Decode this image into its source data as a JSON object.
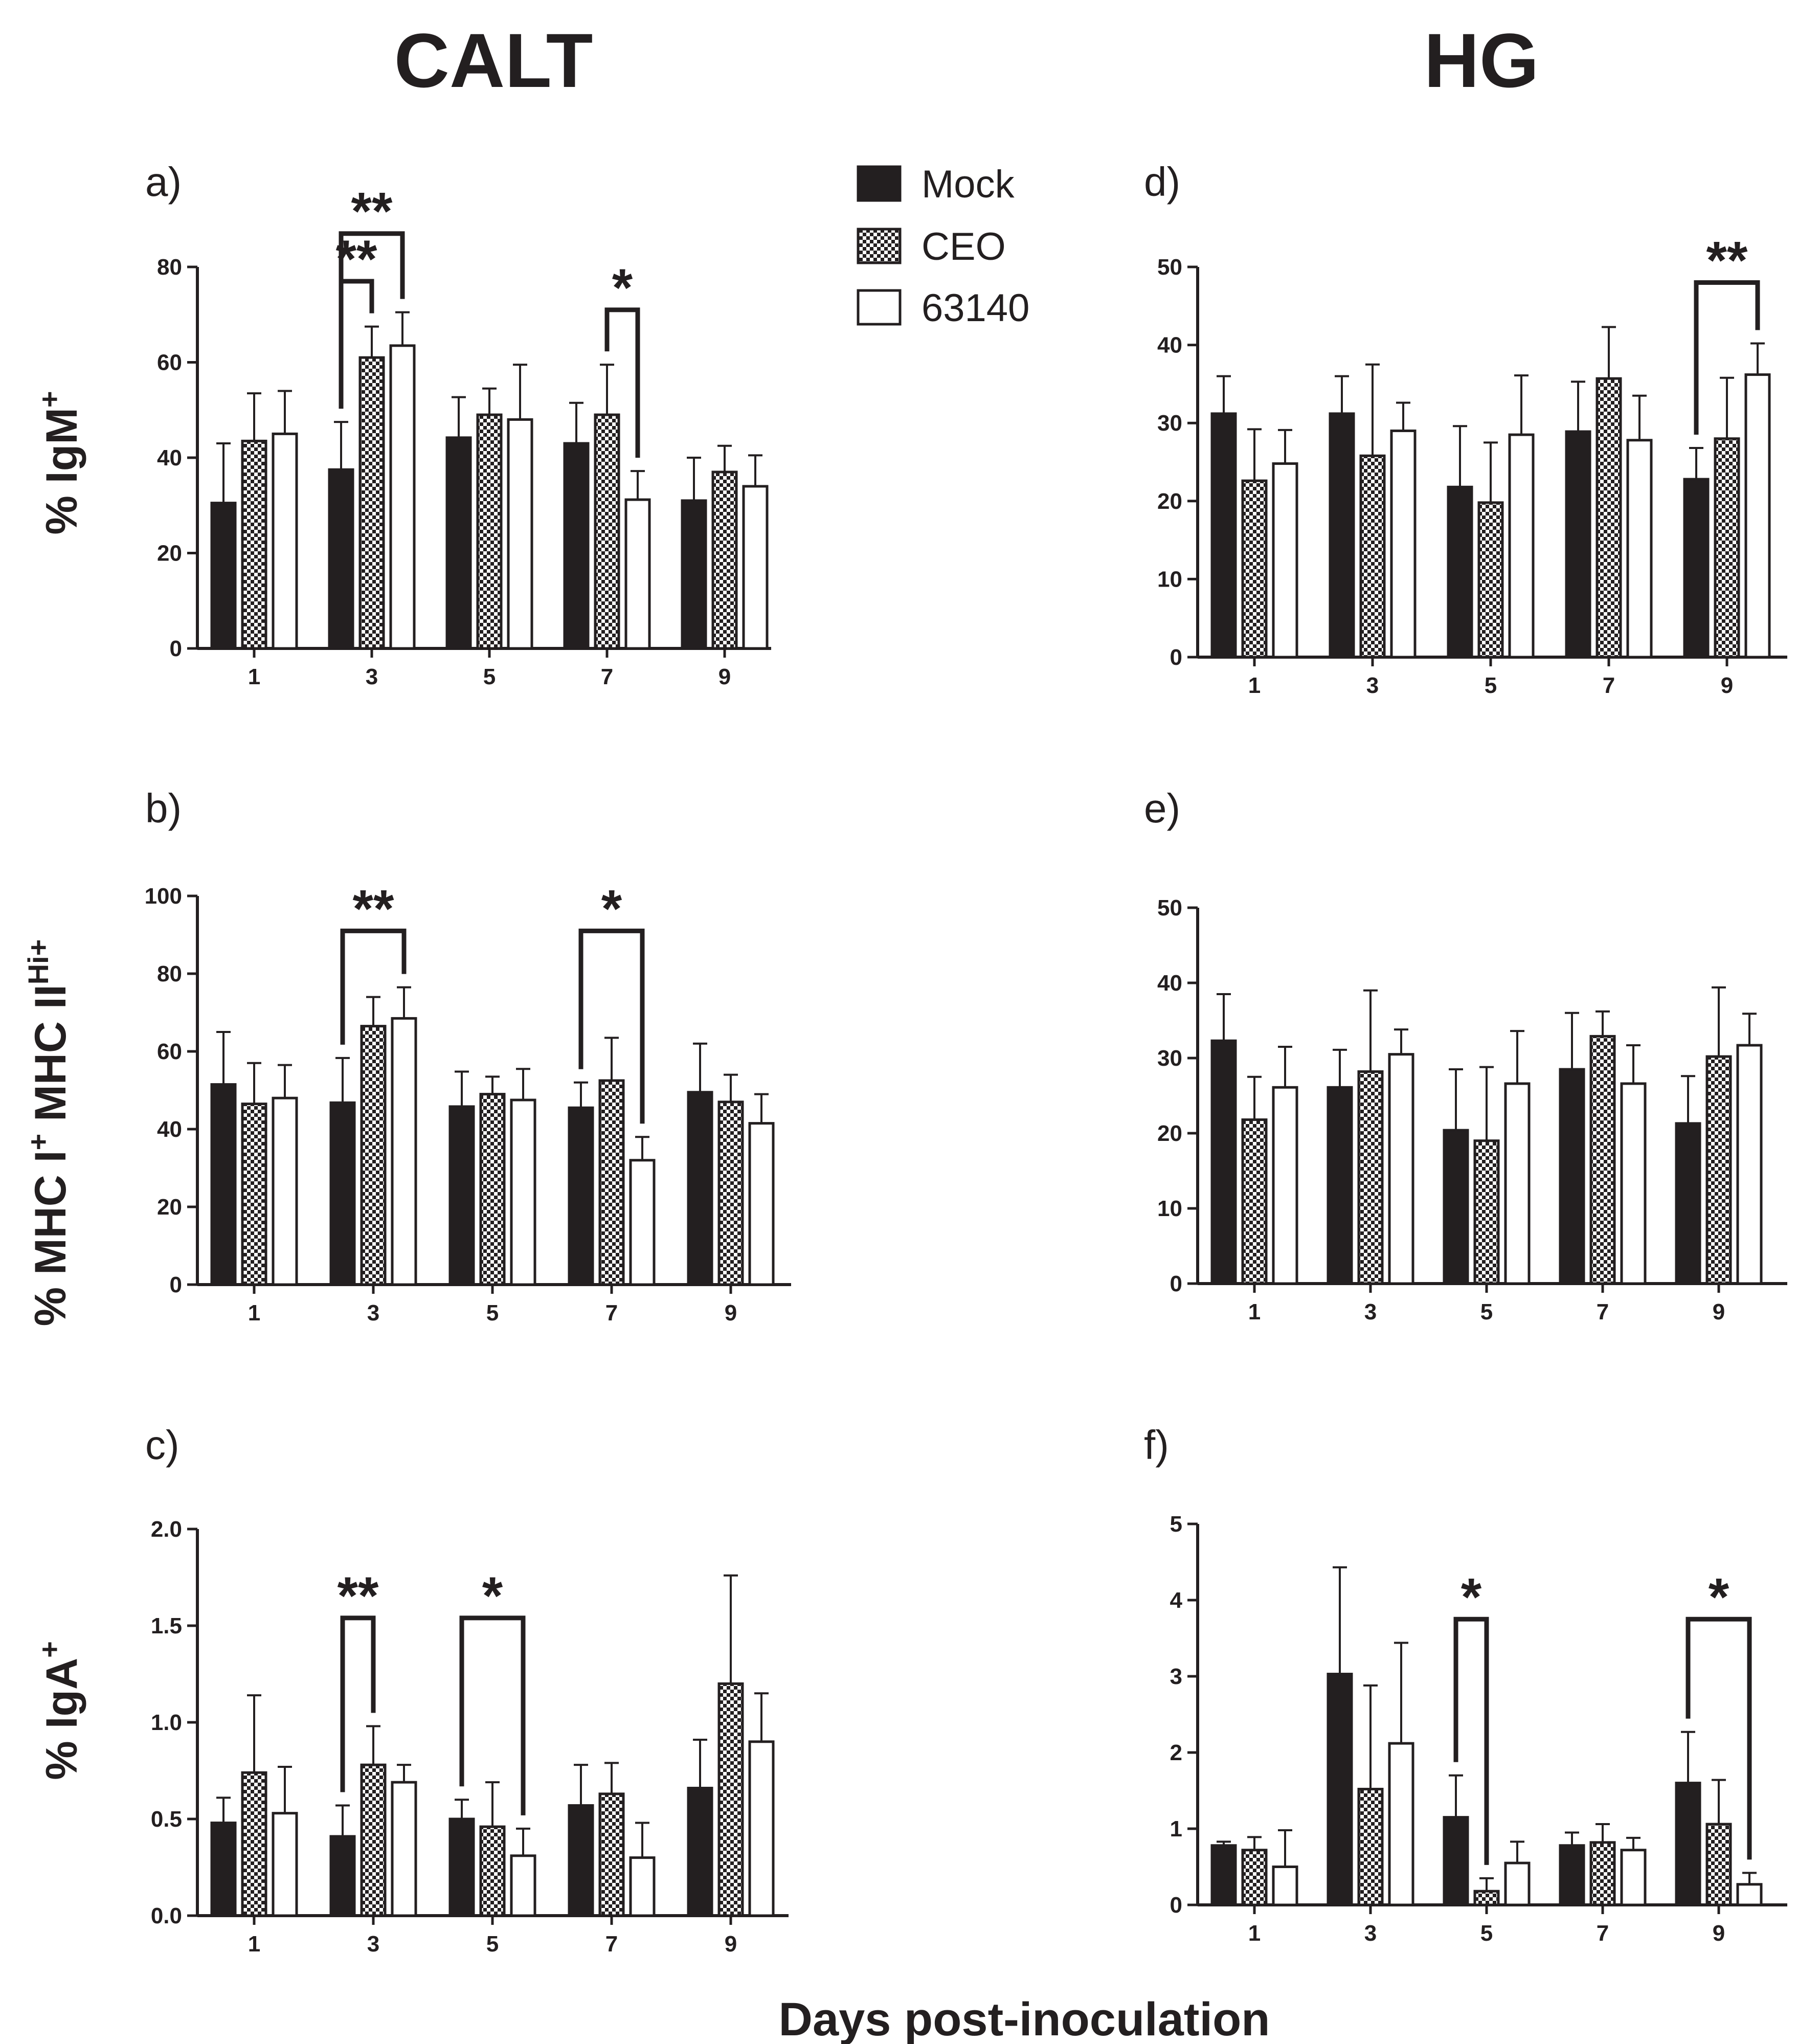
{
  "figure": {
    "column_titles": {
      "left": "CALT",
      "right": "HG"
    },
    "x_label": "Days post-inoculation",
    "y_labels": {
      "igm": {
        "main": "%  IgM",
        "sup": "+"
      },
      "mhc": {
        "a": "% MHC I",
        "b": "+",
        "c": " MHC II",
        "d": "Hi+"
      },
      "iga": {
        "main": "% IgA",
        "sup": "+"
      }
    },
    "legend": [
      {
        "name": "Mock",
        "fill": "solid"
      },
      {
        "name": "CEO",
        "fill": "checker"
      },
      {
        "name": "63140",
        "fill": "open"
      }
    ]
  },
  "colors": {
    "ink": "#231f20",
    "background": "#ffffff"
  },
  "chart_data": [
    {
      "id": "a",
      "label": "a)",
      "type": "bar",
      "tissue": "CALT",
      "categories": [
        "1",
        "3",
        "5",
        "7",
        "9"
      ],
      "yticks": [
        "0",
        "20",
        "40",
        "60",
        "80"
      ],
      "ylim": [
        0,
        80
      ],
      "series": [
        {
          "name": "Mock",
          "values": [
            30.5,
            37.5,
            44.2,
            43.0,
            31.0
          ],
          "errors": [
            12.5,
            10.0,
            8.5,
            8.5,
            9.0
          ]
        },
        {
          "name": "CEO",
          "values": [
            43.5,
            61.0,
            49.0,
            49.0,
            37.0
          ],
          "errors": [
            10.0,
            6.5,
            5.5,
            10.5,
            5.5
          ]
        },
        {
          "name": "63140",
          "values": [
            45.0,
            63.5,
            48.0,
            31.2,
            34.0
          ],
          "errors": [
            9.0,
            7.0,
            11.5,
            6.0,
            6.5
          ]
        }
      ],
      "annotations": [
        {
          "label": "**",
          "category": "3",
          "from": "Mock",
          "to": "CEO",
          "level": 77
        },
        {
          "label": "**",
          "category": "3",
          "from": "Mock",
          "to": "63140",
          "level": 87
        },
        {
          "label": "*",
          "category": "7",
          "from": "CEO",
          "to": "63140",
          "level": 71
        }
      ]
    },
    {
      "id": "b",
      "label": "b)",
      "type": "bar",
      "tissue": "CALT",
      "categories": [
        "1",
        "3",
        "5",
        "7",
        "9"
      ],
      "yticks": [
        "0",
        "20",
        "40",
        "60",
        "80",
        "100"
      ],
      "ylim": [
        0,
        100
      ],
      "series": [
        {
          "name": "Mock",
          "values": [
            51.5,
            46.8,
            45.8,
            45.5,
            49.5
          ],
          "errors": [
            13.5,
            11.5,
            9.0,
            6.5,
            12.5
          ]
        },
        {
          "name": "CEO",
          "values": [
            46.5,
            66.5,
            49.0,
            52.5,
            47.0
          ],
          "errors": [
            10.5,
            7.5,
            4.5,
            11.0,
            7.0
          ]
        },
        {
          "name": "63140",
          "values": [
            48.0,
            68.5,
            47.5,
            32.0,
            41.5
          ],
          "errors": [
            8.5,
            8.0,
            8.0,
            6.0,
            7.5
          ]
        }
      ],
      "annotations": [
        {
          "label": "**",
          "category": "3",
          "from": "Mock",
          "to": "63140",
          "level": 91
        },
        {
          "label": "*",
          "category": "7",
          "from": "Mock",
          "to": "63140",
          "level": 91
        }
      ]
    },
    {
      "id": "c",
      "label": "c)",
      "type": "bar",
      "tissue": "CALT",
      "categories": [
        "1",
        "3",
        "5",
        "7",
        "9"
      ],
      "yticks": [
        "0.0",
        "0.5",
        "1.0",
        "1.5",
        "2.0"
      ],
      "ylim": [
        0,
        2.0
      ],
      "series": [
        {
          "name": "Mock",
          "values": [
            0.48,
            0.41,
            0.5,
            0.57,
            0.66
          ],
          "errors": [
            0.13,
            0.16,
            0.1,
            0.21,
            0.25
          ]
        },
        {
          "name": "CEO",
          "values": [
            0.74,
            0.78,
            0.46,
            0.63,
            1.2
          ],
          "errors": [
            0.4,
            0.2,
            0.23,
            0.16,
            0.56
          ]
        },
        {
          "name": "63140",
          "values": [
            0.53,
            0.69,
            0.31,
            0.3,
            0.9
          ],
          "errors": [
            0.24,
            0.09,
            0.14,
            0.18,
            0.25
          ]
        }
      ],
      "annotations": [
        {
          "label": "**",
          "category": "3",
          "from": "Mock",
          "to": "CEO",
          "level": 1.54
        },
        {
          "label": "*",
          "category": "5",
          "from": "Mock",
          "to": "63140",
          "level": 1.54
        }
      ]
    },
    {
      "id": "d",
      "label": "d)",
      "type": "bar",
      "tissue": "HG",
      "categories": [
        "1",
        "3",
        "5",
        "7",
        "9"
      ],
      "yticks": [
        "0",
        "10",
        "20",
        "30",
        "40",
        "50"
      ],
      "ylim": [
        0,
        50
      ],
      "series": [
        {
          "name": "Mock",
          "values": [
            31.2,
            31.2,
            21.8,
            28.9,
            22.8
          ],
          "errors": [
            4.8,
            4.8,
            7.8,
            6.4,
            4.0
          ]
        },
        {
          "name": "CEO",
          "values": [
            22.6,
            25.8,
            19.8,
            35.7,
            28.0
          ],
          "errors": [
            6.6,
            11.7,
            7.7,
            6.6,
            7.8
          ]
        },
        {
          "name": "63140",
          "values": [
            24.8,
            29.0,
            28.5,
            27.8,
            36.2
          ],
          "errors": [
            4.3,
            3.6,
            7.6,
            5.7,
            4.0
          ]
        }
      ],
      "annotations": [
        {
          "label": "**",
          "category": "9",
          "from": "Mock",
          "to": "63140",
          "level": 48
        }
      ]
    },
    {
      "id": "e",
      "label": "e)",
      "type": "bar",
      "tissue": "HG",
      "categories": [
        "1",
        "3",
        "5",
        "7",
        "9"
      ],
      "yticks": [
        "0",
        "10",
        "20",
        "30",
        "40",
        "50"
      ],
      "ylim": [
        0,
        50
      ],
      "series": [
        {
          "name": "Mock",
          "values": [
            32.3,
            26.1,
            20.4,
            28.5,
            21.3
          ],
          "errors": [
            6.2,
            5.0,
            8.1,
            7.5,
            6.3
          ]
        },
        {
          "name": "CEO",
          "values": [
            21.8,
            28.2,
            19.0,
            32.9,
            30.2
          ],
          "errors": [
            5.7,
            10.8,
            9.8,
            3.3,
            9.2
          ]
        },
        {
          "name": "63140",
          "values": [
            26.1,
            30.5,
            26.6,
            26.6,
            31.7
          ],
          "errors": [
            5.4,
            3.3,
            7.0,
            5.1,
            4.2
          ]
        }
      ],
      "annotations": []
    },
    {
      "id": "f",
      "label": "f)",
      "type": "bar",
      "tissue": "HG",
      "categories": [
        "1",
        "3",
        "5",
        "7",
        "9"
      ],
      "yticks": [
        "0",
        "1",
        "2",
        "3",
        "4",
        "5"
      ],
      "ylim": [
        0,
        5
      ],
      "series": [
        {
          "name": "Mock",
          "values": [
            0.78,
            3.03,
            1.15,
            0.78,
            1.6
          ],
          "errors": [
            0.05,
            1.4,
            0.55,
            0.17,
            0.67
          ]
        },
        {
          "name": "CEO",
          "values": [
            0.72,
            1.52,
            0.18,
            0.82,
            1.06
          ],
          "errors": [
            0.17,
            1.36,
            0.17,
            0.24,
            0.58
          ]
        },
        {
          "name": "63140",
          "values": [
            0.5,
            2.12,
            0.55,
            0.72,
            0.27
          ],
          "errors": [
            0.48,
            1.32,
            0.28,
            0.16,
            0.15
          ]
        }
      ],
      "annotations": [
        {
          "label": "*",
          "category": "5",
          "from": "Mock",
          "to": "CEO",
          "level": 3.75
        },
        {
          "label": "*",
          "category": "9",
          "from": "Mock",
          "to": "63140",
          "level": 3.75
        }
      ]
    }
  ]
}
